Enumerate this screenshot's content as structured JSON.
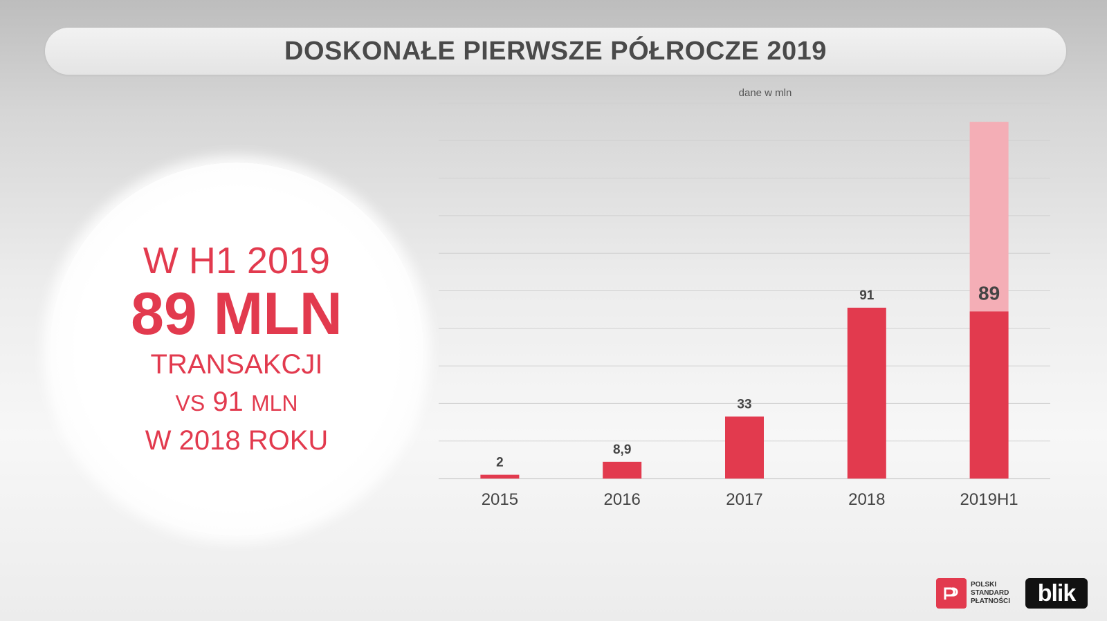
{
  "header": {
    "title": "DOSKONAŁE PIERWSZE PÓŁROCZE 2019"
  },
  "highlight": {
    "line1": "W H1 2019",
    "line2": "89 MLN",
    "line3": "TRANSAKCJI",
    "line4_prefix": "VS",
    "line4_value": "91",
    "line4_unit": "MLN",
    "line5": "W 2018 ROKU"
  },
  "chart_data": {
    "type": "bar",
    "subtitle": "dane w mln",
    "categories": [
      "2015",
      "2016",
      "2017",
      "2018",
      "2019H1"
    ],
    "series": [
      {
        "values": [
          2,
          8.9,
          33,
          91,
          89
        ]
      }
    ],
    "value_labels": [
      "2",
      "8,9",
      "33",
      "91",
      "89"
    ],
    "projection": {
      "category": "2019H1",
      "total": 190
    },
    "ylim": [
      0,
      200
    ],
    "grid": true,
    "colors": {
      "bar": "#e23a4e",
      "projection": "#f4aeb6",
      "grid": "#d0d0d0",
      "label": "#444444"
    }
  },
  "logos": {
    "psp_text": [
      "POLSKI",
      "STANDARD",
      "PŁATNOŚCI"
    ],
    "blik_text": "blik"
  }
}
